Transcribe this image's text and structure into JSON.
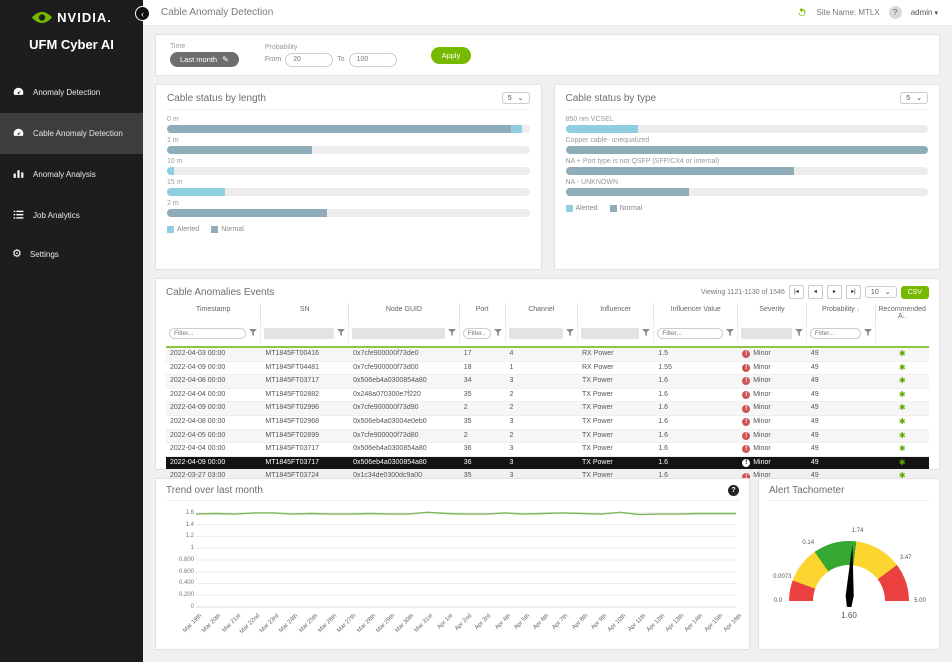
{
  "sidebar": {
    "logo_text": "NVIDIA.",
    "app_title": "UFM Cyber AI",
    "items": [
      {
        "label": "Anomaly Detection",
        "icon": "gauge-icon",
        "active": false
      },
      {
        "label": "Cable Anomaly Detection",
        "icon": "gauge-icon",
        "active": true
      },
      {
        "label": "Anomaly Analysis",
        "icon": "bar-chart-icon",
        "active": false
      },
      {
        "label": "Job Analytics",
        "icon": "list-icon",
        "active": false
      },
      {
        "label": "Settings",
        "icon": "gear-icon",
        "active": false
      }
    ]
  },
  "header": {
    "title": "Cable Anomaly Detection",
    "site_name_label": "Site Name: MTLX",
    "help_label": "?",
    "user": "admin"
  },
  "filters": {
    "time_label": "Time",
    "time_value": "Last month",
    "probability_label": "Probability",
    "from_label": "From",
    "from_value": "20",
    "to_label": "To",
    "to_value": "100",
    "apply_label": "Apply"
  },
  "colors": {
    "accent_green": "#76b900",
    "alerted": "#8fcfe0",
    "normal": "#8fadb8",
    "severity_red": "#d05353",
    "trend_line": "#7cb65a",
    "table_filter_line": "#8dc63f"
  },
  "chart_data": [
    {
      "type": "bar",
      "title": "Cable status by length",
      "page_size": "5",
      "orientation": "horizontal",
      "legend": [
        {
          "name": "Alerted",
          "color": "#8fcfe0"
        },
        {
          "name": "Normal",
          "color": "#8fadb8"
        }
      ],
      "bars": [
        {
          "label": "0 m",
          "segments": [
            {
              "series": "Normal",
              "pct": 95
            },
            {
              "series": "Alerted",
              "pct": 3
            }
          ]
        },
        {
          "label": "1 m",
          "segments": [
            {
              "series": "Normal",
              "pct": 40
            }
          ]
        },
        {
          "label": "10 m",
          "segments": [
            {
              "series": "Alerted",
              "pct": 2
            }
          ]
        },
        {
          "label": "15 m",
          "segments": [
            {
              "series": "Alerted",
              "pct": 16
            }
          ]
        },
        {
          "label": "2 m",
          "segments": [
            {
              "series": "Normal",
              "pct": 44
            }
          ]
        }
      ]
    },
    {
      "type": "bar",
      "title": "Cable status by type",
      "page_size": "5",
      "orientation": "horizontal",
      "legend": [
        {
          "name": "Alerted",
          "color": "#8fcfe0"
        },
        {
          "name": "Normal",
          "color": "#8fadb8"
        }
      ],
      "bars": [
        {
          "label": "850 nm VCSEL",
          "segments": [
            {
              "series": "Alerted",
              "pct": 20
            }
          ]
        },
        {
          "label": "Copper cable- unequalized",
          "segments": [
            {
              "series": "Normal",
              "pct": 100
            }
          ]
        },
        {
          "label": "NA + Port type is not QSFP (SFP/CX4 or internal)",
          "segments": [
            {
              "series": "Normal",
              "pct": 63
            }
          ]
        },
        {
          "label": "NA - UNKNOWN",
          "segments": [
            {
              "series": "Normal",
              "pct": 34
            }
          ]
        }
      ]
    },
    {
      "type": "line",
      "title": "Trend over last month",
      "x": [
        "Mar 19th",
        "Mar 20th",
        "Mar 21st",
        "Mar 22nd",
        "Mar 23rd",
        "Mar 24th",
        "Mar 25th",
        "Mar 26th",
        "Mar 27th",
        "Mar 28th",
        "Mar 29th",
        "Mar 30th",
        "Mar 31st",
        "Apr 1st",
        "Apr 2nd",
        "Apr 3rd",
        "Apr 4th",
        "Apr 5th",
        "Apr 6th",
        "Apr 7th",
        "Apr 8th",
        "Apr 9th",
        "Apr 10th",
        "Apr 11th",
        "Apr 12th",
        "Apr 13th",
        "Apr 14th",
        "Apr 15th",
        "Apr 16th"
      ],
      "values": [
        1.58,
        1.59,
        1.58,
        1.6,
        1.6,
        1.58,
        1.59,
        1.58,
        1.58,
        1.59,
        1.58,
        1.58,
        1.61,
        1.59,
        1.58,
        1.58,
        1.6,
        1.58,
        1.59,
        1.6,
        1.59,
        1.58,
        1.61,
        1.57,
        1.58,
        1.58,
        1.59,
        1.59,
        1.59
      ],
      "yticks": [
        "1.6",
        "1.4",
        "1.2",
        "1",
        "0.800",
        "0.600",
        "0.400",
        "0.200",
        "0"
      ],
      "ylim": [
        0,
        1.7
      ],
      "grid": true,
      "line_color": "#7cb65a"
    },
    {
      "type": "gauge",
      "title": "Alert Tachometer",
      "value": "1.60",
      "min": 0,
      "max": 5,
      "boundaries": [
        {
          "label": "0.0",
          "angle": 0
        },
        {
          "label": "0.0073",
          "angle": 20
        },
        {
          "label": "0.14",
          "angle": 55
        },
        {
          "label": "1.74",
          "angle": 97
        },
        {
          "label": "3.47",
          "angle": 143
        },
        {
          "label": "5.00",
          "angle": 180
        }
      ],
      "segments": [
        {
          "color": "#ea4040",
          "from": 0,
          "to": 20
        },
        {
          "color": "#fdd531",
          "from": 20,
          "to": 55
        },
        {
          "color": "#35a832",
          "from": 55,
          "to": 97
        },
        {
          "color": "#fdd531",
          "from": 97,
          "to": 143
        },
        {
          "color": "#ea4040",
          "from": 143,
          "to": 180
        }
      ],
      "needle_angle": 93
    }
  ],
  "table": {
    "title": "Cable Anomalies Events",
    "pagination": {
      "viewing": "Viewing 1121-1130 of 1546",
      "page_size": "10",
      "csv_label": "CSV"
    },
    "filter_placeholder": "Filter...",
    "columns": [
      {
        "label": "Timestamp",
        "filter": "input"
      },
      {
        "label": "SN",
        "filter": "disabled"
      },
      {
        "label": "Node GUID",
        "filter": "disabled"
      },
      {
        "label": "Port",
        "filter": "input"
      },
      {
        "label": "Channel",
        "filter": "disabled"
      },
      {
        "label": "Influencer",
        "filter": "disabled"
      },
      {
        "label": "Influencer Value",
        "filter": "input"
      },
      {
        "label": "Severity",
        "filter": "disabled"
      },
      {
        "label": "Probability",
        "filter": "input",
        "sort": "desc"
      },
      {
        "label": "Recommended A..",
        "filter": "none"
      }
    ],
    "rows": [
      [
        "2022-04-03 00:00",
        "MT1845FT00416",
        "0x7cfe900000f73de0",
        "17",
        "4",
        "RX Power",
        "1.5",
        "Minor",
        "49"
      ],
      [
        "2022-04-09 00:00",
        "MT1845FT04481",
        "0x7cfe900000f73d00",
        "18",
        "1",
        "RX Power",
        "1.55",
        "Minor",
        "49"
      ],
      [
        "2022-04-08 00:00",
        "MT1845FT03717",
        "0x506eb4a0300854a80",
        "34",
        "3",
        "TX Power",
        "1.6",
        "Minor",
        "49"
      ],
      [
        "2022-04-04 00:00",
        "MT1845FT02882",
        "0x248a070300e7f220",
        "35",
        "2",
        "TX Power",
        "1.6",
        "Minor",
        "49"
      ],
      [
        "2022-04-09 00:00",
        "MT1845FT02996",
        "0x7cfe900000f73d90",
        "2",
        "2",
        "TX Power",
        "1.6",
        "Minor",
        "49"
      ],
      [
        "2022-04-08 00:00",
        "MT1845FT02968",
        "0x506eb4a03004e0eb0",
        "35",
        "3",
        "TX Power",
        "1.6",
        "Minor",
        "49"
      ],
      [
        "2022-04-05 00:00",
        "MT1845FT02899",
        "0x7cfe900000f73d80",
        "2",
        "2",
        "TX Power",
        "1.6",
        "Minor",
        "49"
      ],
      [
        "2022-04-04 00:00",
        "MT1845FT03717",
        "0x506eb4a0300854a80",
        "36",
        "3",
        "TX Power",
        "1.6",
        "Minor",
        "49"
      ],
      [
        "2022-04-09 00:00",
        "MT1845FT03717",
        "0x506eb4a0300854a80",
        "36",
        "3",
        "TX Power",
        "1.6",
        "Minor",
        "49"
      ],
      [
        "2022-03-27 03:00",
        "MT1845FT03724",
        "0x1c34de0300dc9a00",
        "35",
        "3",
        "TX Power",
        "1.6",
        "Minor",
        "49"
      ]
    ],
    "selected_row_index": 8,
    "severity_icon_glyph": "!",
    "recommended_icon_glyph": "✱"
  }
}
